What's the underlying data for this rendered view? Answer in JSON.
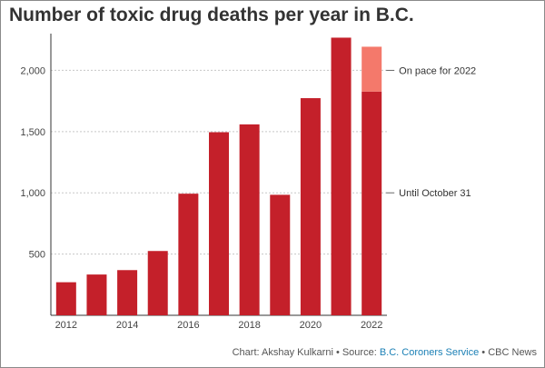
{
  "page": {
    "title": "Number of toxic drug deaths per year in B.C."
  },
  "chart_data": {
    "type": "bar",
    "title": "Number of toxic drug deaths per year in B.C.",
    "xlabel": "",
    "ylabel": "",
    "ylim": [
      0,
      2300
    ],
    "yticks": [
      500,
      1000,
      1500,
      2000
    ],
    "ytick_labels": [
      "500",
      "1,000",
      "1,500",
      "2,000"
    ],
    "categories": [
      "2012",
      "2013",
      "2014",
      "2015",
      "2016",
      "2017",
      "2018",
      "2019",
      "2020",
      "2021",
      "2022"
    ],
    "xtick_labels": [
      "2012",
      "2014",
      "2016",
      "2018",
      "2020",
      "2022"
    ],
    "series": [
      {
        "name": "Until October 31",
        "values": [
          270,
          333,
          369,
          525,
          993,
          1495,
          1559,
          984,
          1773,
          2267,
          1827
        ]
      },
      {
        "name": "On pace for 2022",
        "values": [
          0,
          0,
          0,
          0,
          0,
          0,
          0,
          0,
          0,
          0,
          366
        ]
      }
    ],
    "annotations": [
      {
        "label": "On pace for 2022",
        "y": 2000
      },
      {
        "label": "Until October 31",
        "y": 1000
      }
    ],
    "colors": {
      "main": "#c4202a",
      "projected": "#f4796b"
    },
    "grid": true
  },
  "credit": {
    "prefix": "Chart: Akshay Kulkarni • Source: ",
    "source": "B.C. Coroners Service",
    "suffix": " • CBC News"
  }
}
